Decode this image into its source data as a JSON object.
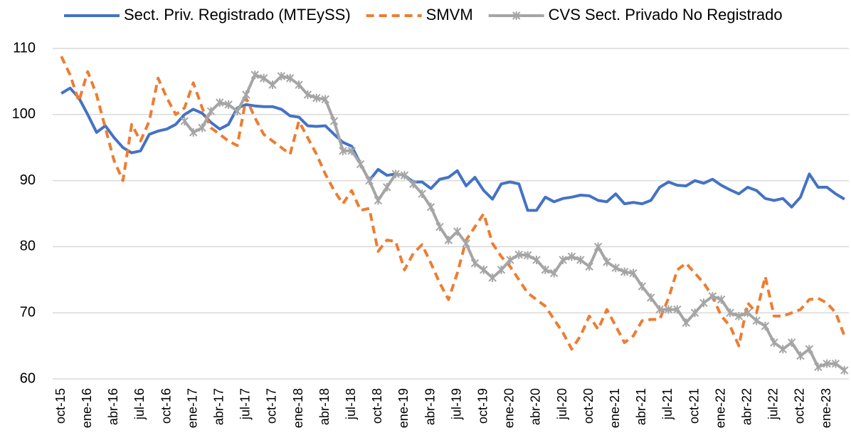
{
  "chart_data": {
    "type": "line",
    "legend": "top",
    "grid": true,
    "ylim": [
      60,
      110
    ],
    "yticks": [
      60,
      70,
      80,
      90,
      100,
      110
    ],
    "categories": [
      "oct-15",
      null,
      null,
      "ene-16",
      null,
      null,
      "abr-16",
      null,
      null,
      "jul-16",
      null,
      null,
      "oct-16",
      null,
      null,
      "ene-17",
      null,
      null,
      "abr-17",
      null,
      null,
      "jul-17",
      null,
      null,
      "oct-17",
      null,
      null,
      "ene-18",
      null,
      null,
      "abr-18",
      null,
      null,
      "jul-18",
      null,
      null,
      "oct-18",
      null,
      null,
      "ene-19",
      null,
      null,
      "abr-19",
      null,
      null,
      "jul-19",
      null,
      null,
      "oct-19",
      null,
      null,
      "ene-20",
      null,
      null,
      "abr-20",
      null,
      null,
      "jul-20",
      null,
      null,
      "oct-20",
      null,
      null,
      "ene-21",
      null,
      null,
      "abr-21",
      null,
      null,
      "jul-21",
      null,
      null,
      "oct-21",
      null,
      null,
      "ene-22",
      null,
      null,
      "abr-22",
      null,
      null,
      "jul-22",
      null,
      null,
      "oct-22",
      null,
      null,
      "ene-23",
      null,
      null
    ],
    "series": [
      {
        "name": "Sect. Priv. Registrado (MTEySS)",
        "color": "#4472c4",
        "dash": "solid",
        "values": [
          103.2,
          104,
          102.5,
          100,
          97.3,
          98.3,
          96.5,
          95,
          94.2,
          94.5,
          97,
          97.5,
          97.8,
          98.5,
          100,
          100.8,
          100.2,
          98.8,
          97.8,
          98.5,
          101,
          101.5,
          101.3,
          101.2,
          101.2,
          100.8,
          99.8,
          99.6,
          98.3,
          98.2,
          98.3,
          97,
          95.8,
          95.2,
          92.5,
          90,
          91.7,
          90.8,
          91,
          90.8,
          89.8,
          89.8,
          88.8,
          90.2,
          90.5,
          91.5,
          89.2,
          90.5,
          88.5,
          87.2,
          89.5,
          89.8,
          89.5,
          85.5,
          85.5,
          87.5,
          86.8,
          87.3,
          87.5,
          87.8,
          87.7,
          87,
          86.8,
          88,
          86.5,
          86.7,
          86.5,
          87,
          89,
          89.8,
          89.3,
          89.2,
          90,
          89.6,
          90.2,
          89.3,
          88.6,
          88,
          89,
          88.5,
          87.3,
          87,
          87.3,
          86,
          87.5,
          91,
          89,
          89,
          88,
          87.2
        ]
      },
      {
        "name": "SMVM",
        "color": "#ed7d31",
        "dash": "dashed",
        "values": [
          108.8,
          106,
          102,
          106.5,
          103,
          98,
          93,
          90,
          98.5,
          96,
          99,
          105.5,
          102.5,
          100,
          101,
          104.8,
          101,
          98,
          97,
          96,
          95.3,
          102.5,
          99.5,
          97,
          96,
          95,
          94,
          99,
          96.5,
          94,
          91,
          88.5,
          86.5,
          88.5,
          85.5,
          85.8,
          79.3,
          81,
          80.8,
          76.5,
          79,
          80.3,
          77.5,
          74.5,
          72,
          76,
          81,
          83,
          85,
          80.5,
          78.5,
          77,
          75,
          73,
          72,
          71,
          69,
          67,
          64.5,
          66.5,
          69.5,
          67.5,
          70.5,
          68,
          65.5,
          66.5,
          68.8,
          69,
          69,
          72.2,
          76.5,
          77.5,
          76,
          74.5,
          72.5,
          69.5,
          68,
          65,
          71.5,
          70,
          75.5,
          69.5,
          69.5,
          70,
          70.5,
          72,
          72.2,
          71.5,
          70,
          66.5
        ]
      },
      {
        "name": "CVS Sect. Privado No Registrado",
        "color": "#a5a5a5",
        "dash": "solid",
        "marker": "x",
        "values": [
          null,
          null,
          null,
          null,
          null,
          null,
          null,
          null,
          null,
          null,
          null,
          null,
          null,
          null,
          99,
          97.3,
          98,
          100.5,
          101.8,
          101.5,
          100.5,
          103,
          106,
          105.5,
          104.5,
          105.8,
          105.5,
          104.5,
          103,
          102.5,
          102.3,
          99,
          94.5,
          94.5,
          92.5,
          90,
          87,
          89,
          91,
          90.8,
          89.5,
          88,
          86,
          83,
          81,
          82.3,
          80.5,
          77.5,
          76.5,
          75.3,
          76.5,
          78,
          78.8,
          78.7,
          78,
          76.5,
          76,
          78,
          78.5,
          78,
          77,
          80,
          77.7,
          76.8,
          76.2,
          76,
          74,
          72.3,
          70.5,
          70.5,
          70.5,
          68.5,
          70,
          71.5,
          72.5,
          72,
          70,
          69.5,
          70,
          68.8,
          68,
          65.5,
          64.5,
          65.5,
          63.5,
          64.5,
          61.8,
          62.3,
          62.3,
          61.3
        ]
      }
    ]
  }
}
